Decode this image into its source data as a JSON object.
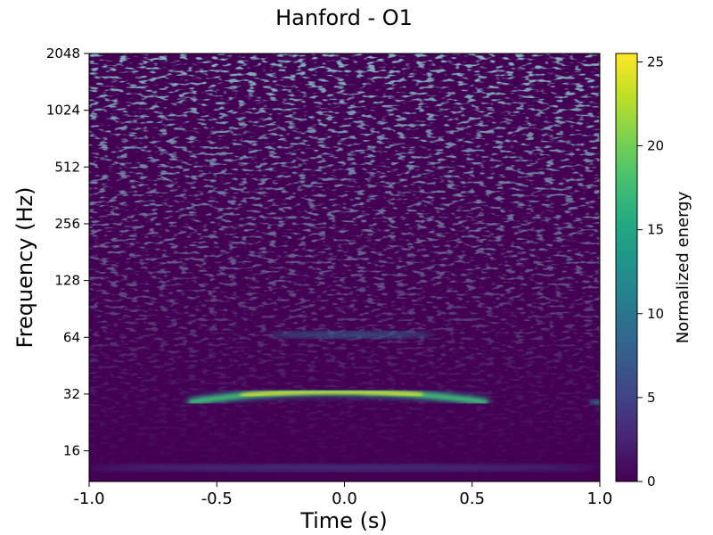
{
  "chart_data": {
    "type": "heatmap",
    "title": "Hanford - O1",
    "xlabel": "Time (s)",
    "ylabel": "Frequency (Hz)",
    "xlim": [
      -1.0,
      1.0
    ],
    "ylim": [
      11,
      2048
    ],
    "y_scale": "log2",
    "x_ticks": [
      "-1.0",
      "-0.5",
      "0.0",
      "0.5",
      "1.0"
    ],
    "x_tick_values": [
      -1.0,
      -0.5,
      0.0,
      0.5,
      1.0
    ],
    "y_ticks": [
      "16",
      "32",
      "64",
      "128",
      "256",
      "512",
      "1024",
      "2048"
    ],
    "y_tick_values": [
      16,
      32,
      64,
      128,
      256,
      512,
      1024,
      2048
    ],
    "colormap": "viridis",
    "colorbar": {
      "label": "Normalized energy",
      "range": [
        0,
        25.5
      ],
      "ticks": [
        "0",
        "5",
        "10",
        "15",
        "20",
        "25"
      ],
      "tick_values": [
        0,
        5,
        10,
        15,
        20,
        25
      ]
    },
    "features": [
      {
        "kind": "chirp",
        "t_start": -0.6,
        "t_end": 0.55,
        "f_peak": 33,
        "t_peak": -0.05,
        "f_edges": 29,
        "max_energy": 25
      },
      {
        "kind": "band",
        "t_start": -0.3,
        "t_end": 0.35,
        "f": 66,
        "energy": 9
      },
      {
        "kind": "band",
        "t_start": -1.0,
        "t_end": 1.0,
        "f": 13,
        "energy": 5
      },
      {
        "kind": "spot",
        "t": 1.0,
        "f": 29,
        "energy": 10
      }
    ]
  }
}
